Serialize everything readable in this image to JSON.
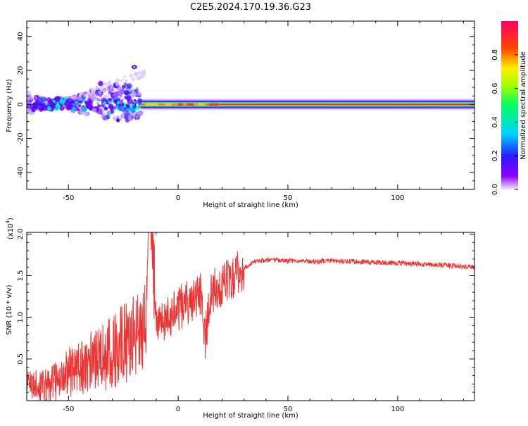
{
  "figure_title": "C2E5.2024.170.19.36.G23",
  "colors": {
    "snr_line": "#ee3333",
    "background": "#ffffff",
    "axes": "#000000"
  },
  "chart_data": [
    {
      "type": "heatmap",
      "title": "C2E5.2024.170.19.36.G23",
      "xlabel": "Height of straight line (km)",
      "ylabel": "Frequency (Hz)",
      "xlim": [
        -69,
        135
      ],
      "ylim": [
        -50,
        49
      ],
      "xticks": [
        -50,
        0,
        50,
        100
      ],
      "yticks": [
        -40,
        -20,
        0,
        20,
        40
      ],
      "colorbar": {
        "label": "Normalized spectral amplitude",
        "range": [
          0,
          1
        ],
        "ticks": [
          "0.0",
          "0.2",
          "0.4",
          "0.6",
          "0.8"
        ],
        "colormap": "rainbow: white-violet (0) → blue → cyan → green → yellow → red → magenta-red (1)"
      },
      "features": [
        {
          "name": "dominant line",
          "x_range": [
            -17,
            135
          ],
          "frequency_hz": 0,
          "amplitude": 0.85
        },
        {
          "name": "scattered energy",
          "x_range": [
            -69,
            -17
          ],
          "frequency_range_hz": [
            -8,
            10
          ],
          "amplitude": 0.3
        },
        {
          "name": "isolated blob",
          "x": -20,
          "frequency_hz": 22,
          "amplitude": 0.1
        }
      ]
    },
    {
      "type": "line",
      "xlabel": "Height of straight line (km)",
      "ylabel": "SNR (10 * v/v)",
      "y_multiplier_label": "(x10",
      "y_multiplier_exp": "4",
      "xlim": [
        -69,
        135
      ],
      "ylim": [
        0,
        2.02
      ],
      "xticks": [
        -50,
        0,
        50,
        100
      ],
      "yticks": [
        0.5,
        1.0,
        1.5,
        2.0
      ],
      "series": [
        {
          "x": [
            -69,
            -60,
            -50,
            -40,
            -30,
            -20,
            -15,
            -13,
            -10,
            -5,
            0,
            5,
            10,
            12,
            15,
            20,
            25,
            30,
            35,
            40,
            50,
            60,
            70,
            80,
            90,
            100,
            110,
            120,
            130,
            135
          ],
          "y": [
            0.15,
            0.1,
            0.25,
            0.35,
            0.45,
            0.6,
            0.75,
            1.9,
            0.9,
            1.0,
            1.1,
            1.2,
            1.3,
            0.7,
            1.3,
            1.4,
            1.5,
            1.6,
            1.67,
            1.69,
            1.68,
            1.67,
            1.68,
            1.67,
            1.66,
            1.65,
            1.64,
            1.63,
            1.61,
            1.6
          ]
        }
      ]
    }
  ]
}
